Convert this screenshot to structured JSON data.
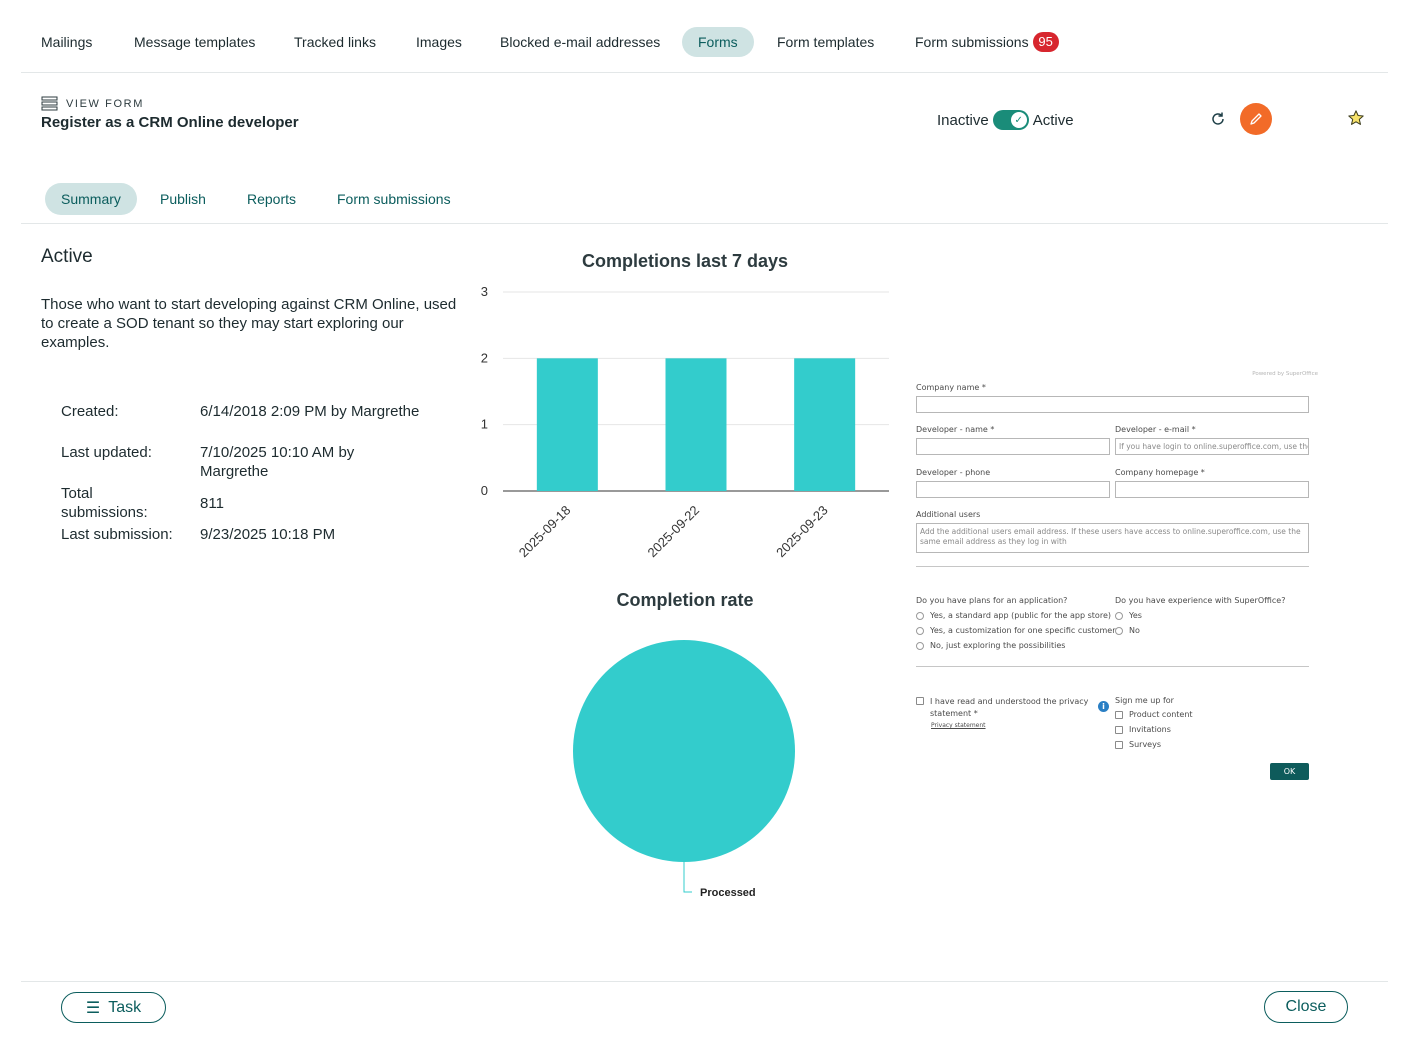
{
  "topnav": {
    "items": [
      {
        "label": "Mailings",
        "active": false
      },
      {
        "label": "Message templates",
        "active": false
      },
      {
        "label": "Tracked links",
        "active": false
      },
      {
        "label": "Images",
        "active": false
      },
      {
        "label": "Blocked e-mail addresses",
        "active": false
      },
      {
        "label": "Forms",
        "active": true
      },
      {
        "label": "Form templates",
        "active": false
      },
      {
        "label": "Form submissions",
        "active": false,
        "badge": "95"
      }
    ]
  },
  "header": {
    "section_label": "VIEW FORM",
    "title": "Register as a CRM Online developer",
    "toggle_off_label": "Inactive",
    "toggle_on_label": "Active",
    "toggle_state": true
  },
  "subtabs": [
    {
      "label": "Summary",
      "active": true
    },
    {
      "label": "Publish",
      "active": false
    },
    {
      "label": "Reports",
      "active": false
    },
    {
      "label": "Form submissions",
      "active": false
    }
  ],
  "summary": {
    "status": "Active",
    "description": "Those who want to start developing against CRM Online, used to create a SOD tenant so they may start exploring our examples.",
    "created_label": "Created:",
    "created_value": "6/14/2018 2:09 PM by Margrethe",
    "updated_label": "Last updated:",
    "updated_value": "7/10/2025 10:10 AM by Margrethe",
    "total_label": "Total submissions:",
    "total_value": "811",
    "last_label": "Last submission:",
    "last_value": "9/23/2025 10:18 PM"
  },
  "chart_data": [
    {
      "type": "bar",
      "title": "Completions last 7 days",
      "categories": [
        "2025-09-18",
        "2025-09-22",
        "2025-09-23"
      ],
      "values": [
        2,
        2,
        2
      ],
      "ylim": [
        0,
        3
      ],
      "yticks": [
        "0",
        "1",
        "2",
        "3"
      ],
      "grid": true,
      "color": "#33cccc"
    },
    {
      "type": "pie",
      "title": "Completion rate",
      "slices": [
        {
          "label": "Processed",
          "value": 100
        }
      ],
      "color": "#33cccc"
    }
  ],
  "form_preview": {
    "powered": "Powered by SuperOffice",
    "company_name_label": "Company name *",
    "dev_name_label": "Developer - name *",
    "dev_email_label": "Developer - e-mail *",
    "dev_email_placeholder": "If you have login to online.superoffice.com, use the",
    "dev_phone_label": "Developer - phone",
    "homepage_label": "Company homepage *",
    "additional_label": "Additional users",
    "additional_placeholder": "Add the additional users email address. If these users have access to online.superoffice.com, use the same email address as they log in with",
    "plans_question": "Do you have plans for an application?",
    "plans_options": [
      "Yes, a standard app (public for the app store)",
      "Yes, a customization for one specific customer",
      "No, just exploring the possibilities"
    ],
    "experience_question": "Do you have experience with SuperOffice?",
    "experience_options": [
      "Yes",
      "No"
    ],
    "privacy_text_1": "I have read and understood the privacy",
    "privacy_text_2": "statement *",
    "privacy_link": "Privacy statement",
    "signup_label": "Sign me up for",
    "signup_options": [
      "Product content",
      "Invitations",
      "Surveys"
    ],
    "ok_label": "OK"
  },
  "footer": {
    "task_label": "Task",
    "close_label": "Close"
  },
  "colors": {
    "accent": "#0b5d5d",
    "chart": "#33cccc",
    "toggle": "#1a8c79",
    "edit": "#f26b28",
    "badge": "#d7262e"
  }
}
